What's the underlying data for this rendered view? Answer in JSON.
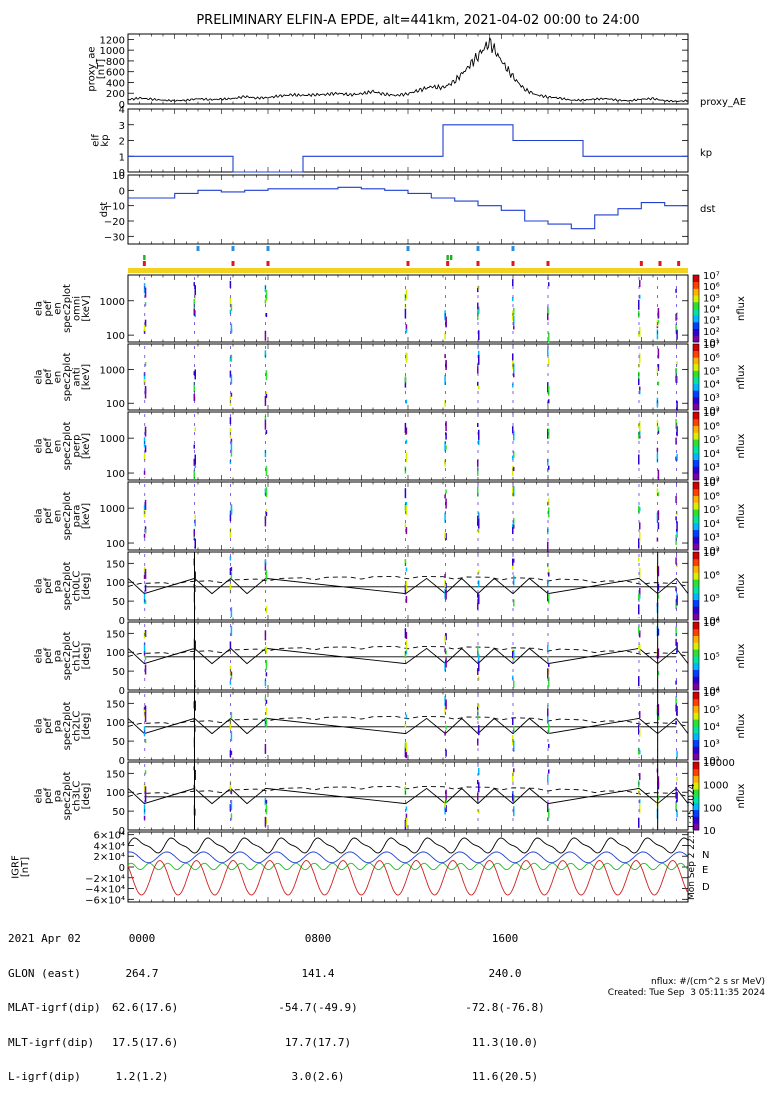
{
  "title": "PRELIMINARY ELFIN-A EPDE, alt=441km, 2021-04-02 00:00 to 24:00",
  "colors": {
    "kp": "#1f3fd0",
    "dst": "#1f3fd0",
    "ae": "#000000",
    "E": "#22bb22",
    "N": "#1f3fd0",
    "D": "#d11f1f",
    "bar_yellow": "#f2d21c",
    "tick_red": "#e01818",
    "tick_green": "#20b020",
    "tick_blue": "#2a8ee0"
  },
  "chart_data": [
    {
      "type": "line",
      "ylabel": "proxy_ae\n[nT]",
      "legend": "proxy_AE",
      "ylim": [
        0,
        1300
      ],
      "yticks": [
        0,
        200,
        400,
        600,
        800,
        1000,
        1200
      ],
      "x_hours": [
        0,
        0.5,
        1,
        1.5,
        2,
        2.5,
        3,
        3.5,
        4,
        4.5,
        5,
        5.5,
        6,
        6.5,
        7,
        7.5,
        8,
        8.5,
        9,
        9.5,
        10,
        10.5,
        11,
        11.5,
        12,
        12.5,
        13,
        13.5,
        14,
        14.5,
        15,
        15.5,
        16,
        16.5,
        17,
        17.5,
        18,
        18.5,
        19,
        19.5,
        20,
        20.5,
        21,
        21.5,
        22,
        22.5,
        23,
        23.5,
        24
      ],
      "values": [
        80,
        110,
        90,
        70,
        60,
        70,
        100,
        80,
        90,
        100,
        140,
        110,
        120,
        150,
        170,
        160,
        170,
        180,
        200,
        170,
        190,
        230,
        180,
        160,
        190,
        260,
        320,
        300,
        420,
        650,
        900,
        1150,
        800,
        500,
        270,
        170,
        130,
        110,
        70,
        70,
        90,
        100,
        70,
        60,
        90,
        100,
        60,
        50,
        60
      ]
    },
    {
      "type": "line",
      "ylabel": "elf\nkp",
      "legend": "kp",
      "ylim": [
        0,
        4
      ],
      "yticks": [
        0,
        1,
        2,
        3,
        4
      ],
      "steps": [
        {
          "start": 0,
          "end": 4.5,
          "value": 1.0
        },
        {
          "start": 4.5,
          "end": 7.5,
          "value": 0.0
        },
        {
          "start": 7.5,
          "end": 13.5,
          "value": 1.0
        },
        {
          "start": 13.5,
          "end": 16.5,
          "value": 3.0
        },
        {
          "start": 16.5,
          "end": 19.5,
          "value": 2.0
        },
        {
          "start": 19.5,
          "end": 24,
          "value": 1.0
        }
      ]
    },
    {
      "type": "line",
      "ylabel": "dst",
      "legend": "dst",
      "ylim": [
        -35,
        10
      ],
      "yticks": [
        -30,
        -20,
        -10,
        0,
        10
      ],
      "steps": [
        {
          "start": 0,
          "end": 2,
          "value": -5
        },
        {
          "start": 2,
          "end": 3,
          "value": -2
        },
        {
          "start": 3,
          "end": 4,
          "value": 0
        },
        {
          "start": 4,
          "end": 5,
          "value": -1
        },
        {
          "start": 5,
          "end": 6,
          "value": 0
        },
        {
          "start": 6,
          "end": 8,
          "value": 1
        },
        {
          "start": 8,
          "end": 9,
          "value": 1
        },
        {
          "start": 9,
          "end": 10,
          "value": 2
        },
        {
          "start": 10,
          "end": 11,
          "value": 1
        },
        {
          "start": 11,
          "end": 12,
          "value": 0
        },
        {
          "start": 12,
          "end": 13,
          "value": -2
        },
        {
          "start": 13,
          "end": 14,
          "value": -5
        },
        {
          "start": 14,
          "end": 15,
          "value": -7
        },
        {
          "start": 15,
          "end": 16,
          "value": -10
        },
        {
          "start": 16,
          "end": 17,
          "value": -13
        },
        {
          "start": 17,
          "end": 18,
          "value": -20
        },
        {
          "start": 18,
          "end": 19,
          "value": -22
        },
        {
          "start": 19,
          "end": 20,
          "value": -25
        },
        {
          "start": 20,
          "end": 21,
          "value": -16
        },
        {
          "start": 21,
          "end": 22,
          "value": -12
        },
        {
          "start": 22,
          "end": 23,
          "value": -8
        },
        {
          "start": 23,
          "end": 24,
          "value": -10
        }
      ]
    },
    {
      "type": "heatmap",
      "ylabel": "ela\npef\nen\nspec2plot\nomni\n[keV]",
      "ylog": true,
      "yticks": [
        100,
        1000
      ],
      "zlabel": "nflux",
      "zrange": [
        1,
        7
      ]
    },
    {
      "type": "heatmap",
      "ylabel": "ela\npef\nen\nspec2plot\nanti\n[keV]",
      "ylog": true,
      "yticks": [
        100,
        1000
      ],
      "zlabel": "nflux",
      "zrange": [
        1,
        7
      ]
    },
    {
      "type": "heatmap",
      "ylabel": "ela\npef\nen\nspec2plot\nperp\n[keV]",
      "ylog": true,
      "yticks": [
        100,
        1000
      ],
      "zlabel": "nflux",
      "zrange": [
        1,
        7
      ]
    },
    {
      "type": "heatmap",
      "ylabel": "ela\npef\nen\nspec2plot\npara\n[keV]",
      "ylog": true,
      "yticks": [
        100,
        1000
      ],
      "zlabel": "nflux",
      "zrange": [
        1,
        7
      ]
    },
    {
      "type": "heatmap",
      "ylabel": "ela\npef\npa\nspec2plot\nch0LC\n[deg]",
      "ylim": [
        0,
        180
      ],
      "yticks": [
        0,
        50,
        100,
        150
      ],
      "zlabel": "nflux",
      "zrange": [
        4,
        7
      ]
    },
    {
      "type": "heatmap",
      "ylabel": "ela\npef\npa\nspec2plot\nch1LC\n[deg]",
      "ylim": [
        0,
        180
      ],
      "yticks": [
        0,
        50,
        100,
        150
      ],
      "zlabel": "nflux",
      "zrange": [
        4,
        6
      ]
    },
    {
      "type": "heatmap",
      "ylabel": "ela\npef\npa\nspec2plot\nch2LC\n[deg]",
      "ylim": [
        0,
        180
      ],
      "yticks": [
        0,
        50,
        100,
        150
      ],
      "zlabel": "nflux",
      "zrange": [
        2,
        6
      ]
    },
    {
      "type": "heatmap",
      "ylabel": "ela\npef\npa\nspec2plot\nch3LC\n[deg]",
      "ylim": [
        0,
        180
      ],
      "yticks": [
        0,
        50,
        100,
        150
      ],
      "zlabel": "nflux",
      "zrange": [
        1,
        4
      ]
    },
    {
      "type": "line",
      "ylabel": "IGRF\n[nT]",
      "ylim": [
        -65000,
        65000
      ],
      "series": [
        {
          "name": "N"
        },
        {
          "name": "E"
        },
        {
          "name": "D"
        }
      ]
    }
  ],
  "color_scales": [
    {
      "labels": [
        "10⁷",
        "10⁶",
        "10⁵",
        "10⁴",
        "10³",
        "10²",
        "10¹"
      ]
    },
    {
      "labels": [
        "10⁷",
        "10⁶",
        "10⁵",
        "10⁴",
        "10³",
        "10²"
      ]
    },
    {
      "labels": [
        "10⁷",
        "10⁶",
        "10⁵",
        "10⁴",
        "10³",
        "10²"
      ]
    },
    {
      "labels": [
        "10⁷",
        "10⁶",
        "10⁵",
        "10⁴",
        "10³",
        "10²"
      ]
    },
    {
      "labels": [
        "10⁷",
        "10⁶",
        "10⁵",
        "10⁴"
      ]
    },
    {
      "labels": [
        "10⁶",
        "10⁵",
        "10⁴"
      ]
    },
    {
      "labels": [
        "10⁶",
        "10⁵",
        "10⁴",
        "10³",
        "10²"
      ]
    },
    {
      "labels": [
        "10000",
        "1000",
        "100",
        "10"
      ]
    }
  ],
  "igrf_yticks": [
    "6×10⁴",
    "4×10⁴",
    "2×10⁴",
    "0",
    "−2×10⁴",
    "−4×10⁴",
    "−6×10⁴"
  ],
  "footer": {
    "date_label": "2021 Apr 02",
    "rows": [
      {
        "label": "GLON (east)",
        "v": [
          "264.7",
          "141.4",
          "240.0"
        ]
      },
      {
        "label": "MLAT-igrf(dip)",
        "v": [
          "62.6(17.6)",
          "-54.7(-49.9)",
          "-72.8(-76.8)"
        ]
      },
      {
        "label": "MLT-igrf(dip)",
        "v": [
          "17.5(17.6)",
          "17.7(17.7)",
          "11.3(10.0)"
        ]
      },
      {
        "label": "L-igrf(dip)",
        "v": [
          "1.2(1.2)",
          "3.0(2.6)",
          "11.6(20.5)"
        ]
      }
    ],
    "times": [
      "0000",
      "0800",
      "1600"
    ]
  },
  "nflux_units": "nflux: #/(cm^2 s sr MeV)",
  "created": "Created: Tue Sep  3 05:11:35 2024",
  "vertical_stamp": "Mon Sep  2 22:11:35 2024"
}
